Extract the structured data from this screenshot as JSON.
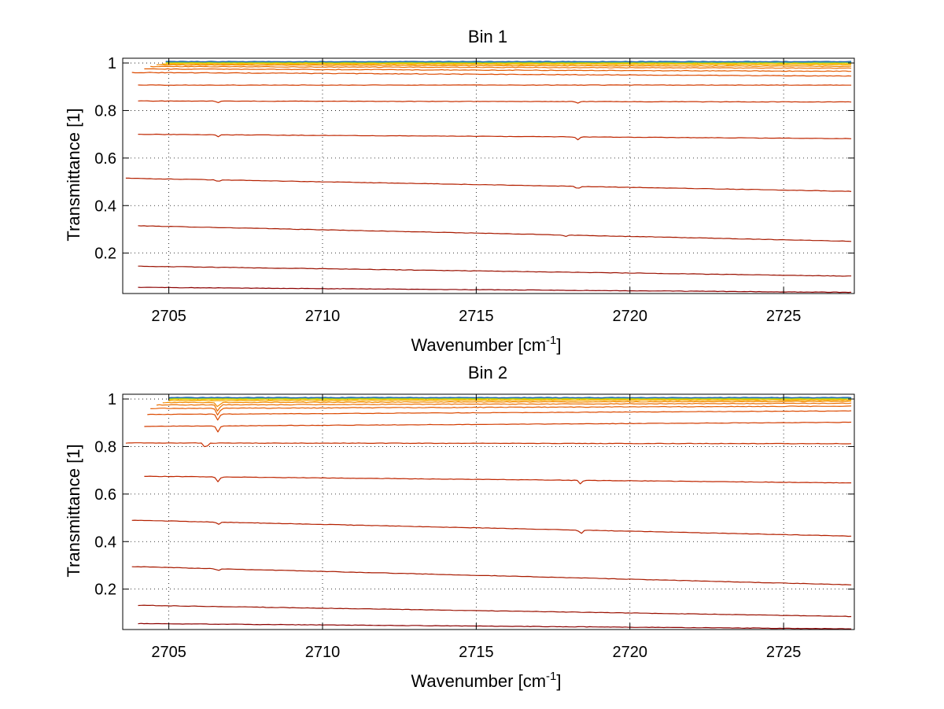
{
  "chart_data": [
    {
      "type": "line",
      "title": "Bin 1",
      "xlabel": "Wavenumber [cm",
      "xlabel_sup": "-1",
      "xlabel_end": "]",
      "ylabel": "Transmittance [1]",
      "xlim": [
        2703.5,
        2727.3
      ],
      "ylim": [
        0.03,
        1.02
      ],
      "x_ticks": [
        2705,
        2710,
        2715,
        2720,
        2725
      ],
      "y_ticks": [
        0.2,
        0.4,
        0.6,
        0.8,
        1
      ],
      "x_tick_labels": [
        "2705",
        "2710",
        "2715",
        "2720",
        "2725"
      ],
      "y_tick_labels": [
        "0.2",
        "0.4",
        "0.6",
        "0.8",
        "1"
      ],
      "grid": true,
      "series": [
        {
          "x_start": 2704.0,
          "x_end": 2727.2,
          "y_start": 0.056,
          "y_end": 0.035,
          "color": "#8b0000",
          "dips": []
        },
        {
          "x_start": 2704.0,
          "x_end": 2727.2,
          "y_start": 0.145,
          "y_end": 0.103,
          "color": "#9a1000",
          "dips": []
        },
        {
          "x_start": 2704.0,
          "x_end": 2727.2,
          "y_start": 0.315,
          "y_end": 0.25,
          "color": "#a81a00",
          "dips": [
            {
              "x": 2717.9,
              "depth": 0.006
            }
          ]
        },
        {
          "x_start": 2703.6,
          "x_end": 2727.2,
          "y_start": 0.515,
          "y_end": 0.46,
          "color": "#b42000",
          "dips": [
            {
              "x": 2706.6,
              "depth": 0.008
            },
            {
              "x": 2718.3,
              "depth": 0.012
            }
          ]
        },
        {
          "x_start": 2704.0,
          "x_end": 2727.2,
          "y_start": 0.7,
          "y_end": 0.682,
          "color": "#bf2600",
          "dips": [
            {
              "x": 2706.6,
              "depth": 0.008
            },
            {
              "x": 2718.3,
              "depth": 0.012
            }
          ]
        },
        {
          "x_start": 2704.0,
          "x_end": 2727.2,
          "y_start": 0.84,
          "y_end": 0.836,
          "color": "#c83000",
          "dips": [
            {
              "x": 2706.6,
              "depth": 0.006
            },
            {
              "x": 2718.3,
              "depth": 0.006
            }
          ]
        },
        {
          "x_start": 2704.0,
          "x_end": 2727.2,
          "y_start": 0.907,
          "y_end": 0.907,
          "color": "#d23c00",
          "dips": []
        },
        {
          "x_start": 2703.8,
          "x_end": 2727.2,
          "y_start": 0.96,
          "y_end": 0.945,
          "color": "#dc4a00",
          "dips": []
        },
        {
          "x_start": 2704.2,
          "x_end": 2727.2,
          "y_start": 0.975,
          "y_end": 0.965,
          "color": "#e45c00",
          "dips": []
        },
        {
          "x_start": 2704.4,
          "x_end": 2727.2,
          "y_start": 0.985,
          "y_end": 0.978,
          "color": "#ec7000",
          "dips": []
        },
        {
          "x_start": 2704.6,
          "x_end": 2727.2,
          "y_start": 0.992,
          "y_end": 0.986,
          "color": "#f28a00",
          "dips": []
        },
        {
          "x_start": 2704.8,
          "x_end": 2727.2,
          "y_start": 0.996,
          "y_end": 0.993,
          "color": "#f7a800",
          "dips": []
        },
        {
          "x_start": 2704.9,
          "x_end": 2727.2,
          "y_start": 0.999,
          "y_end": 0.997,
          "color": "#f5c400",
          "dips": []
        },
        {
          "x_start": 2704.9,
          "x_end": 2727.2,
          "y_start": 1.001,
          "y_end": 1.0,
          "color": "#d8d400",
          "dips": []
        },
        {
          "x_start": 2704.9,
          "x_end": 2727.2,
          "y_start": 1.003,
          "y_end": 1.002,
          "color": "#9ecc30",
          "dips": []
        },
        {
          "x_start": 2704.9,
          "x_end": 2727.2,
          "y_start": 1.005,
          "y_end": 1.004,
          "color": "#40b0a0",
          "dips": []
        },
        {
          "x_start": 2704.9,
          "x_end": 2727.2,
          "y_start": 1.006,
          "y_end": 1.006,
          "color": "#1e60b0",
          "dips": []
        }
      ]
    },
    {
      "type": "line",
      "title": "Bin 2",
      "xlabel": "Wavenumber [cm",
      "xlabel_sup": "-1",
      "xlabel_end": "]",
      "ylabel": "Transmittance [1]",
      "xlim": [
        2703.5,
        2727.3
      ],
      "ylim": [
        0.03,
        1.02
      ],
      "x_ticks": [
        2705,
        2710,
        2715,
        2720,
        2725
      ],
      "y_ticks": [
        0.2,
        0.4,
        0.6,
        0.8,
        1
      ],
      "x_tick_labels": [
        "2705",
        "2710",
        "2715",
        "2720",
        "2725"
      ],
      "y_tick_labels": [
        "0.2",
        "0.4",
        "0.6",
        "0.8",
        "1"
      ],
      "grid": true,
      "series": [
        {
          "x_start": 2704.0,
          "x_end": 2727.2,
          "y_start": 0.055,
          "y_end": 0.033,
          "color": "#8b0000",
          "dips": []
        },
        {
          "x_start": 2704.0,
          "x_end": 2727.2,
          "y_start": 0.132,
          "y_end": 0.085,
          "color": "#9a1000",
          "dips": []
        },
        {
          "x_start": 2703.8,
          "x_end": 2727.2,
          "y_start": 0.295,
          "y_end": 0.218,
          "color": "#a81a00",
          "dips": [
            {
              "x": 2706.6,
              "depth": 0.008
            }
          ]
        },
        {
          "x_start": 2703.8,
          "x_end": 2727.2,
          "y_start": 0.49,
          "y_end": 0.423,
          "color": "#b42000",
          "dips": [
            {
              "x": 2706.6,
              "depth": 0.01
            },
            {
              "x": 2718.4,
              "depth": 0.015
            }
          ]
        },
        {
          "x_start": 2704.2,
          "x_end": 2727.2,
          "y_start": 0.675,
          "y_end": 0.647,
          "color": "#bf2600",
          "dips": [
            {
              "x": 2706.6,
              "depth": 0.02
            },
            {
              "x": 2718.4,
              "depth": 0.015
            }
          ]
        },
        {
          "x_start": 2703.6,
          "x_end": 2727.2,
          "y_start": 0.815,
          "y_end": 0.812,
          "color": "#c83000",
          "dips": [
            {
              "x": 2706.2,
              "depth": 0.022
            }
          ]
        },
        {
          "x_start": 2704.2,
          "x_end": 2727.2,
          "y_start": 0.885,
          "y_end": 0.902,
          "color": "#d23c00",
          "dips": [
            {
              "x": 2706.6,
              "depth": 0.025
            }
          ]
        },
        {
          "x_start": 2704.3,
          "x_end": 2727.2,
          "y_start": 0.935,
          "y_end": 0.95,
          "color": "#dc4a00",
          "dips": [
            {
              "x": 2706.6,
              "depth": 0.025
            }
          ]
        },
        {
          "x_start": 2704.4,
          "x_end": 2727.2,
          "y_start": 0.96,
          "y_end": 0.97,
          "color": "#e45c00",
          "dips": [
            {
              "x": 2706.6,
              "depth": 0.03
            }
          ]
        },
        {
          "x_start": 2704.6,
          "x_end": 2727.2,
          "y_start": 0.975,
          "y_end": 0.982,
          "color": "#ec7000",
          "dips": [
            {
              "x": 2706.6,
              "depth": 0.028
            }
          ]
        },
        {
          "x_start": 2704.8,
          "x_end": 2727.2,
          "y_start": 0.985,
          "y_end": 0.99,
          "color": "#f28a00",
          "dips": [
            {
              "x": 2706.6,
              "depth": 0.02
            }
          ]
        },
        {
          "x_start": 2705.0,
          "x_end": 2727.2,
          "y_start": 0.993,
          "y_end": 0.995,
          "color": "#f7a800",
          "dips": []
        },
        {
          "x_start": 2705.0,
          "x_end": 2727.2,
          "y_start": 0.998,
          "y_end": 0.999,
          "color": "#f5c400",
          "dips": []
        },
        {
          "x_start": 2705.0,
          "x_end": 2727.2,
          "y_start": 1.001,
          "y_end": 1.001,
          "color": "#d8d400",
          "dips": []
        },
        {
          "x_start": 2705.0,
          "x_end": 2727.2,
          "y_start": 1.003,
          "y_end": 1.003,
          "color": "#9ecc30",
          "dips": []
        },
        {
          "x_start": 2705.0,
          "x_end": 2727.2,
          "y_start": 1.005,
          "y_end": 1.005,
          "color": "#40b0a0",
          "dips": []
        },
        {
          "x_start": 2705.0,
          "x_end": 2727.2,
          "y_start": 1.006,
          "y_end": 1.006,
          "color": "#1e60b0",
          "dips": []
        }
      ]
    }
  ]
}
